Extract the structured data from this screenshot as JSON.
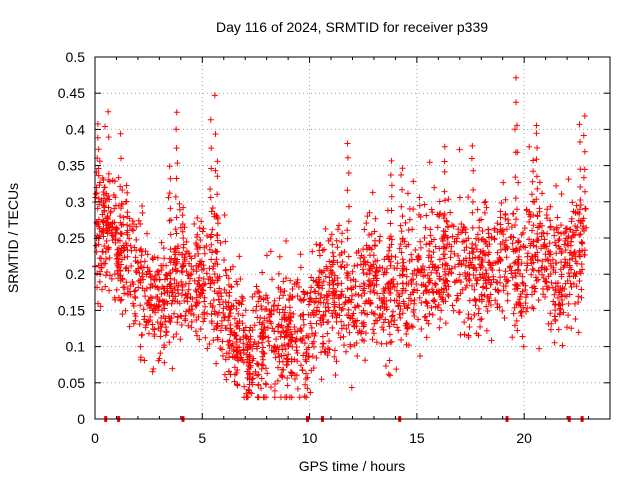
{
  "chart_data": {
    "type": "scatter",
    "title": "Day 116 of 2024, SRMTID for receiver p339",
    "xlabel": "GPS time / hours",
    "ylabel": "SRMTID / TECUs",
    "xlim": [
      0,
      24
    ],
    "ylim": [
      0,
      0.5
    ],
    "x_ticks": [
      0,
      5,
      10,
      15,
      20
    ],
    "x_tick_labels": [
      "0",
      "5",
      "10",
      "15",
      "20"
    ],
    "y_ticks": [
      0,
      0.05,
      0.1,
      0.15,
      0.2,
      0.25,
      0.3,
      0.35,
      0.4,
      0.45,
      0.5
    ],
    "y_tick_labels": [
      "0",
      "0.05",
      "0.1",
      "0.15",
      "0.2",
      "0.25",
      "0.3",
      "0.35",
      "0.4",
      "0.45",
      "0.5"
    ],
    "grid": true,
    "marker": "+",
    "marker_color": "#ff0000",
    "axis_ticks_color": "#ff0000",
    "trend": [
      [
        0.0,
        0.24
      ],
      [
        0.5,
        0.26
      ],
      [
        1.0,
        0.24
      ],
      [
        1.5,
        0.21
      ],
      [
        2.0,
        0.19
      ],
      [
        2.5,
        0.17
      ],
      [
        3.0,
        0.15
      ],
      [
        3.5,
        0.18
      ],
      [
        4.0,
        0.2
      ],
      [
        4.5,
        0.19
      ],
      [
        5.0,
        0.19
      ],
      [
        5.5,
        0.19
      ],
      [
        6.0,
        0.14
      ],
      [
        6.5,
        0.12
      ],
      [
        7.0,
        0.1
      ],
      [
        7.5,
        0.11
      ],
      [
        8.0,
        0.12
      ],
      [
        8.5,
        0.12
      ],
      [
        9.0,
        0.12
      ],
      [
        9.5,
        0.12
      ],
      [
        10.0,
        0.14
      ],
      [
        10.5,
        0.17
      ],
      [
        11.0,
        0.18
      ],
      [
        11.5,
        0.16
      ],
      [
        12.0,
        0.16
      ],
      [
        12.5,
        0.18
      ],
      [
        13.0,
        0.19
      ],
      [
        13.5,
        0.18
      ],
      [
        14.0,
        0.17
      ],
      [
        14.5,
        0.18
      ],
      [
        15.0,
        0.2
      ],
      [
        15.5,
        0.21
      ],
      [
        16.0,
        0.21
      ],
      [
        16.5,
        0.22
      ],
      [
        17.0,
        0.21
      ],
      [
        17.5,
        0.2
      ],
      [
        18.0,
        0.2
      ],
      [
        18.5,
        0.21
      ],
      [
        19.0,
        0.23
      ],
      [
        19.5,
        0.2
      ],
      [
        20.0,
        0.21
      ],
      [
        20.5,
        0.23
      ],
      [
        21.0,
        0.22
      ],
      [
        21.5,
        0.2
      ],
      [
        22.0,
        0.21
      ],
      [
        22.5,
        0.22
      ],
      [
        22.9,
        0.24
      ]
    ],
    "spikes": [
      [
        0.1,
        0.41
      ],
      [
        0.2,
        0.37
      ],
      [
        0.4,
        0.33
      ],
      [
        0.6,
        0.31
      ],
      [
        1.2,
        0.39
      ],
      [
        1.5,
        0.32
      ],
      [
        3.5,
        0.35
      ],
      [
        3.8,
        0.42
      ],
      [
        4.1,
        0.29
      ],
      [
        5.4,
        0.41
      ],
      [
        5.6,
        0.45
      ],
      [
        5.7,
        0.36
      ],
      [
        11.8,
        0.38
      ],
      [
        13.8,
        0.36
      ],
      [
        14.3,
        0.35
      ],
      [
        16.3,
        0.38
      ],
      [
        17.6,
        0.38
      ],
      [
        19.6,
        0.47
      ],
      [
        19.7,
        0.41
      ],
      [
        20.4,
        0.36
      ],
      [
        20.6,
        0.41
      ],
      [
        22.6,
        0.41
      ],
      [
        22.8,
        0.42
      ],
      [
        7.1,
        0.04
      ],
      [
        7.2,
        0.035
      ],
      [
        6.6,
        0.05
      ],
      [
        7.8,
        0.06
      ]
    ],
    "x_range_data": [
      0.0,
      22.9
    ],
    "bottom_markers_x": [
      0.5,
      1.1,
      4.1,
      9.9,
      10.6,
      14.2,
      19.2,
      22.1,
      22.7
    ]
  }
}
